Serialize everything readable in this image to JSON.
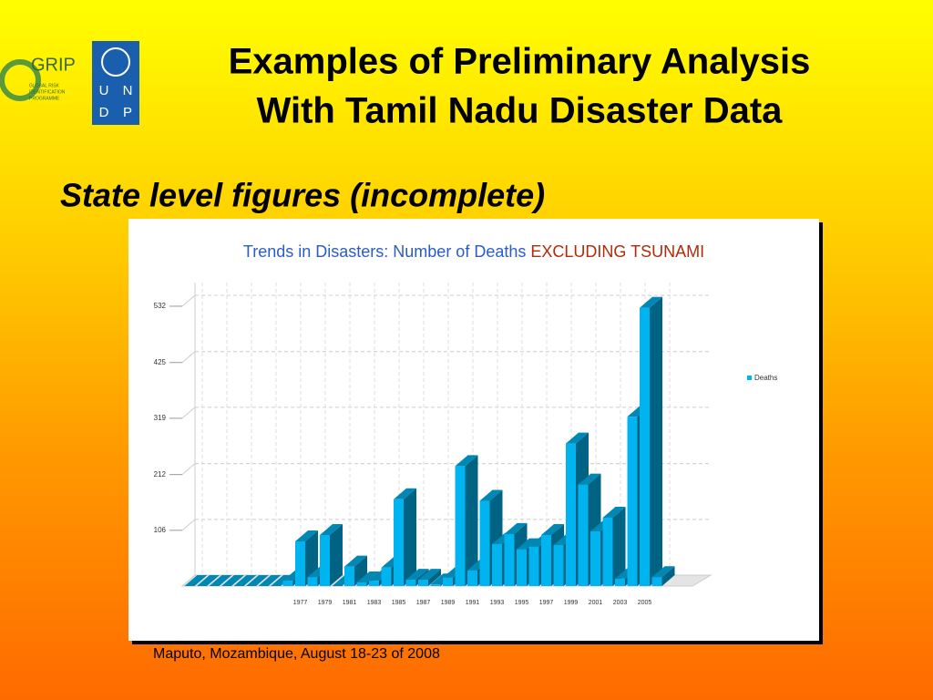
{
  "slide": {
    "title_lines": [
      "Examples of Preliminary Analysis",
      "With Tamil Nadu Disaster Data"
    ],
    "subtitle": "State level figures (incomplete)",
    "footer": "Maputo, Mozambique, August 18-23 of 2008",
    "grip_logo": "GRIP",
    "grip_lines": [
      "GLOBAL RISK",
      "IDENTIFICATION",
      "PROGRAMME"
    ],
    "undp_letters": [
      "U",
      "N",
      "D",
      "P"
    ]
  },
  "chart_data": {
    "type": "bar3d",
    "title": "Trends in Disasters: Number of Deaths",
    "title_highlight": "EXCLUDING TSUNAMI",
    "categories": [
      null,
      null,
      null,
      null,
      null,
      null,
      null,
      null,
      null,
      "1977",
      null,
      "1979",
      null,
      "1981",
      null,
      "1983",
      null,
      "1985",
      null,
      "1987",
      null,
      "1989",
      null,
      "1991",
      null,
      "1993",
      null,
      "1995",
      null,
      "1997",
      null,
      "1999",
      null,
      "2001",
      null,
      "2003",
      null,
      "2005",
      null
    ],
    "series": [
      {
        "name": "Deaths",
        "color": "#00b4f0",
        "values": [
          0,
          0,
          0,
          0,
          0,
          0,
          0,
          0,
          10,
          85,
          17,
          97,
          0,
          37,
          7,
          10,
          35,
          165,
          12,
          12,
          3,
          16,
          228,
          30,
          162,
          80,
          99,
          70,
          75,
          97,
          78,
          271,
          193,
          104,
          130,
          14,
          322,
          529,
          17
        ]
      }
    ],
    "ylim": [
      0,
      577
    ],
    "yticks": [
      106,
      212,
      319,
      425,
      532
    ],
    "grid": true,
    "legend": "right"
  }
}
